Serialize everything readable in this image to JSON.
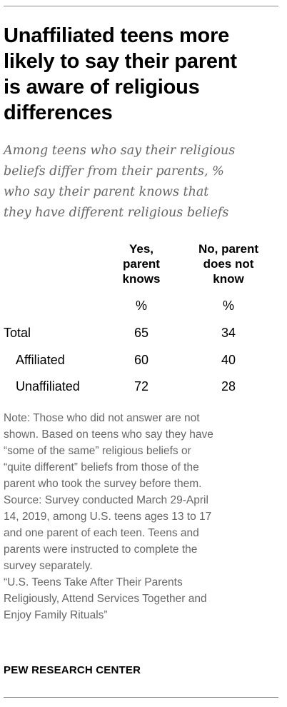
{
  "title_lines": [
    "Unaffiliated teens more",
    "likely to say their parent",
    "is aware of religious",
    "differences"
  ],
  "subtitle_lines": [
    "Among teens who say their religious",
    "beliefs differ from their parents, %",
    "who say their parent knows that",
    "they have different religious beliefs"
  ],
  "chart_data": {
    "type": "table",
    "columns": [
      {
        "header_lines": [
          "Yes,",
          "parent",
          "knows"
        ],
        "unit": "%"
      },
      {
        "header_lines": [
          "No, parent",
          "does not",
          "know"
        ],
        "unit": "%"
      }
    ],
    "rows": [
      {
        "label": "Total",
        "indent": false,
        "values": [
          65,
          34
        ]
      },
      {
        "label": "Affiliated",
        "indent": true,
        "values": [
          60,
          40
        ]
      },
      {
        "label": "Unaffiliated",
        "indent": true,
        "values": [
          72,
          28
        ]
      }
    ]
  },
  "note_lines": [
    "Note: Those who did not answer are not",
    "shown. Based on teens who say they have",
    "“some of the same” religious beliefs or",
    "“quite different” beliefs from those of the",
    "parent who took the survey before them.",
    "Source: Survey conducted March 29-April",
    "14, 2019, among U.S. teens ages 13 to 17",
    "and one parent of each teen. Teens and",
    "parents were instructed to complete the",
    "survey separately.",
    "“U.S. Teens Take After Their Parents",
    "Religiously, Attend Services Together and",
    "Enjoy Family Rituals”"
  ],
  "source_label": "PEW RESEARCH CENTER"
}
